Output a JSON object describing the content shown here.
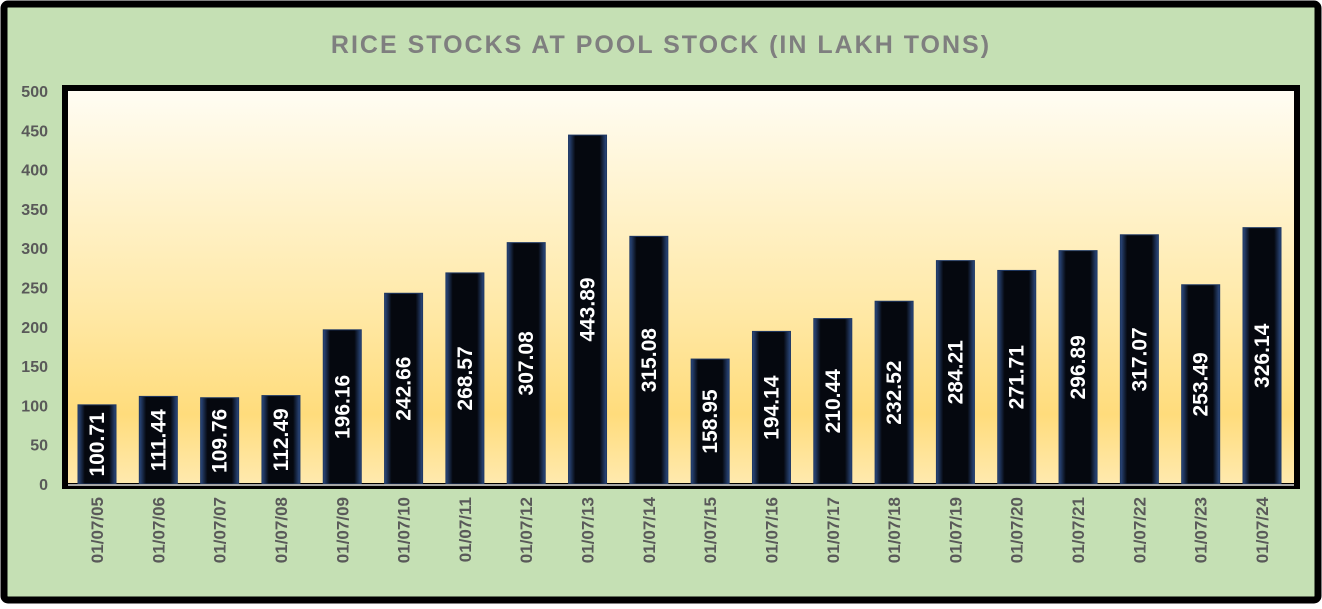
{
  "chart_data": {
    "type": "bar",
    "title": "RICE STOCKS AT POOL STOCK (IN LAKH TONS)",
    "xlabel": "",
    "ylabel": "",
    "ylim": [
      0,
      500
    ],
    "yticks": [
      0,
      50,
      100,
      150,
      200,
      250,
      300,
      350,
      400,
      450,
      500
    ],
    "grid": false,
    "legend": "none",
    "categories": [
      "01/07/05",
      "01/07/06",
      "01/07/07",
      "01/07/08",
      "01/07/09",
      "01/07/10",
      "01/07/11",
      "01/07/12",
      "01/07/13",
      "01/07/14",
      "01/07/15",
      "01/07/16",
      "01/07/17",
      "01/07/18",
      "01/07/19",
      "01/07/20",
      "01/07/21",
      "01/07/22",
      "01/07/23",
      "01/07/24"
    ],
    "values": [
      100.71,
      111.44,
      109.76,
      112.49,
      196.16,
      242.66,
      268.57,
      307.08,
      443.89,
      315.08,
      158.95,
      194.14,
      210.44,
      232.52,
      284.21,
      271.71,
      296.89,
      317.07,
      253.49,
      326.14
    ],
    "value_labels": [
      "100.71",
      "111.44",
      "109.76",
      "112.49",
      "196.16",
      "242.66",
      "268.57",
      "307.08",
      "443.89",
      "315.08",
      "158.95",
      "194.14",
      "210.44",
      "232.52",
      "284.21",
      "271.71",
      "296.89",
      "317.07",
      "253.49",
      "326.14"
    ]
  },
  "colors": {
    "background": "#c5e0b4",
    "bar": "#000000",
    "bar_edge": "#2f4f8a",
    "title": "#7f7f7f",
    "axis_text": "#595959",
    "plot_top": "#fffdf5",
    "plot_bottom": "#ffdb7a"
  }
}
